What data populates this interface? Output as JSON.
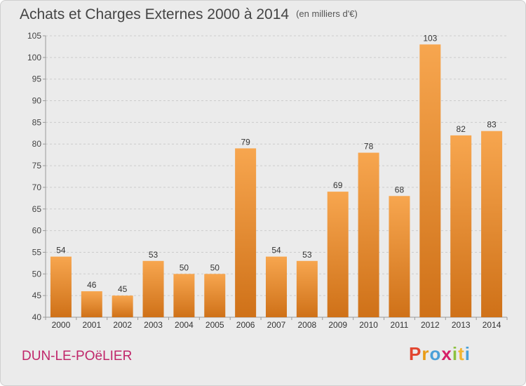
{
  "header": {
    "title": "Achats et Charges Externes 2000 à 2014",
    "subtitle": "(en milliers d'€)"
  },
  "footer": {
    "commune": "DUN-LE-POëLIER",
    "logo_text": "Proxiti",
    "logo_colors": [
      "#e2452f",
      "#e99b16",
      "#4aa0d8",
      "#d61f68",
      "#8cc13f",
      "#f2b531",
      "#4aa0d8"
    ]
  },
  "colors": {
    "bar_top": "#f7a64f",
    "bar_bottom": "#cf7118",
    "grid": "#cccccc",
    "plot_bg": "#ebebeb"
  },
  "chart_data": {
    "type": "bar",
    "title": "Achats et Charges Externes 2000 à 2014",
    "subtitle": "(en milliers d'€)",
    "xlabel": "",
    "ylabel": "",
    "categories": [
      "2000",
      "2001",
      "2002",
      "2003",
      "2004",
      "2005",
      "2006",
      "2007",
      "2008",
      "2009",
      "2010",
      "2011",
      "2012",
      "2013",
      "2014"
    ],
    "values": [
      54,
      46,
      45,
      53,
      50,
      50,
      79,
      54,
      53,
      69,
      78,
      68,
      103,
      82,
      83
    ],
    "ylim": [
      40,
      105
    ],
    "yticks": [
      40,
      45,
      50,
      55,
      60,
      65,
      70,
      75,
      80,
      85,
      90,
      95,
      100,
      105
    ],
    "grid": true,
    "data_labels": true
  }
}
